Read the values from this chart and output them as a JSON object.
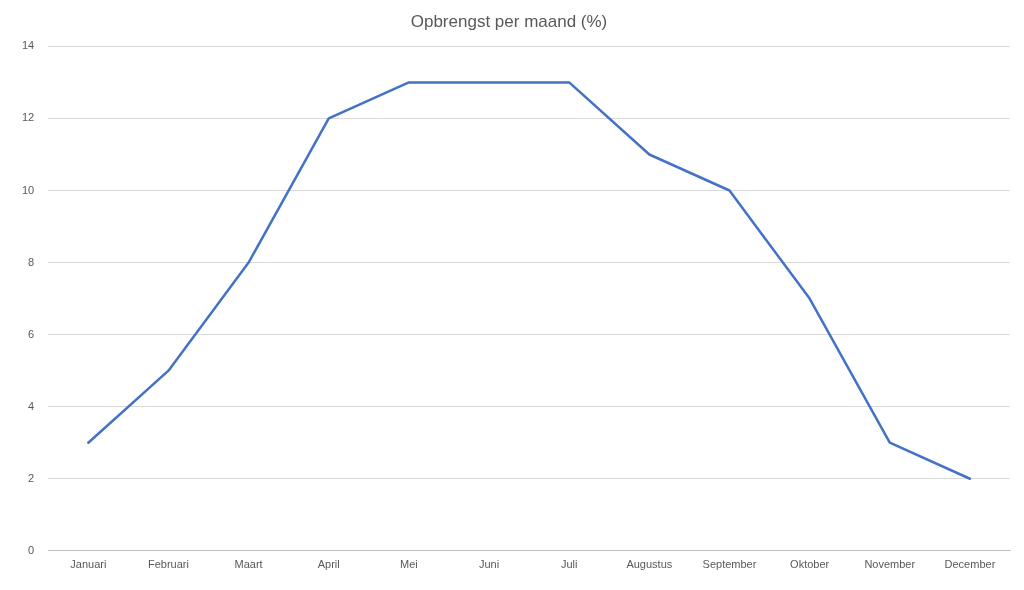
{
  "chart_data": {
    "type": "line",
    "title": "Opbrengst per maand (%)",
    "categories": [
      "Januari",
      "Februari",
      "Maart",
      "April",
      "Mei",
      "Juni",
      "Juli",
      "Augustus",
      "September",
      "Oktober",
      "November",
      "December"
    ],
    "series": [
      {
        "color": "#4472c4",
        "values": [
          3,
          5,
          8,
          12,
          13,
          13,
          13,
          11,
          10,
          7,
          3,
          2
        ]
      }
    ],
    "ylim": [
      0,
      14
    ],
    "yticks": [
      0,
      2,
      4,
      6,
      8,
      10,
      12,
      14
    ],
    "grid": "y",
    "legend": false,
    "marker": "none",
    "line_style": "solid"
  }
}
